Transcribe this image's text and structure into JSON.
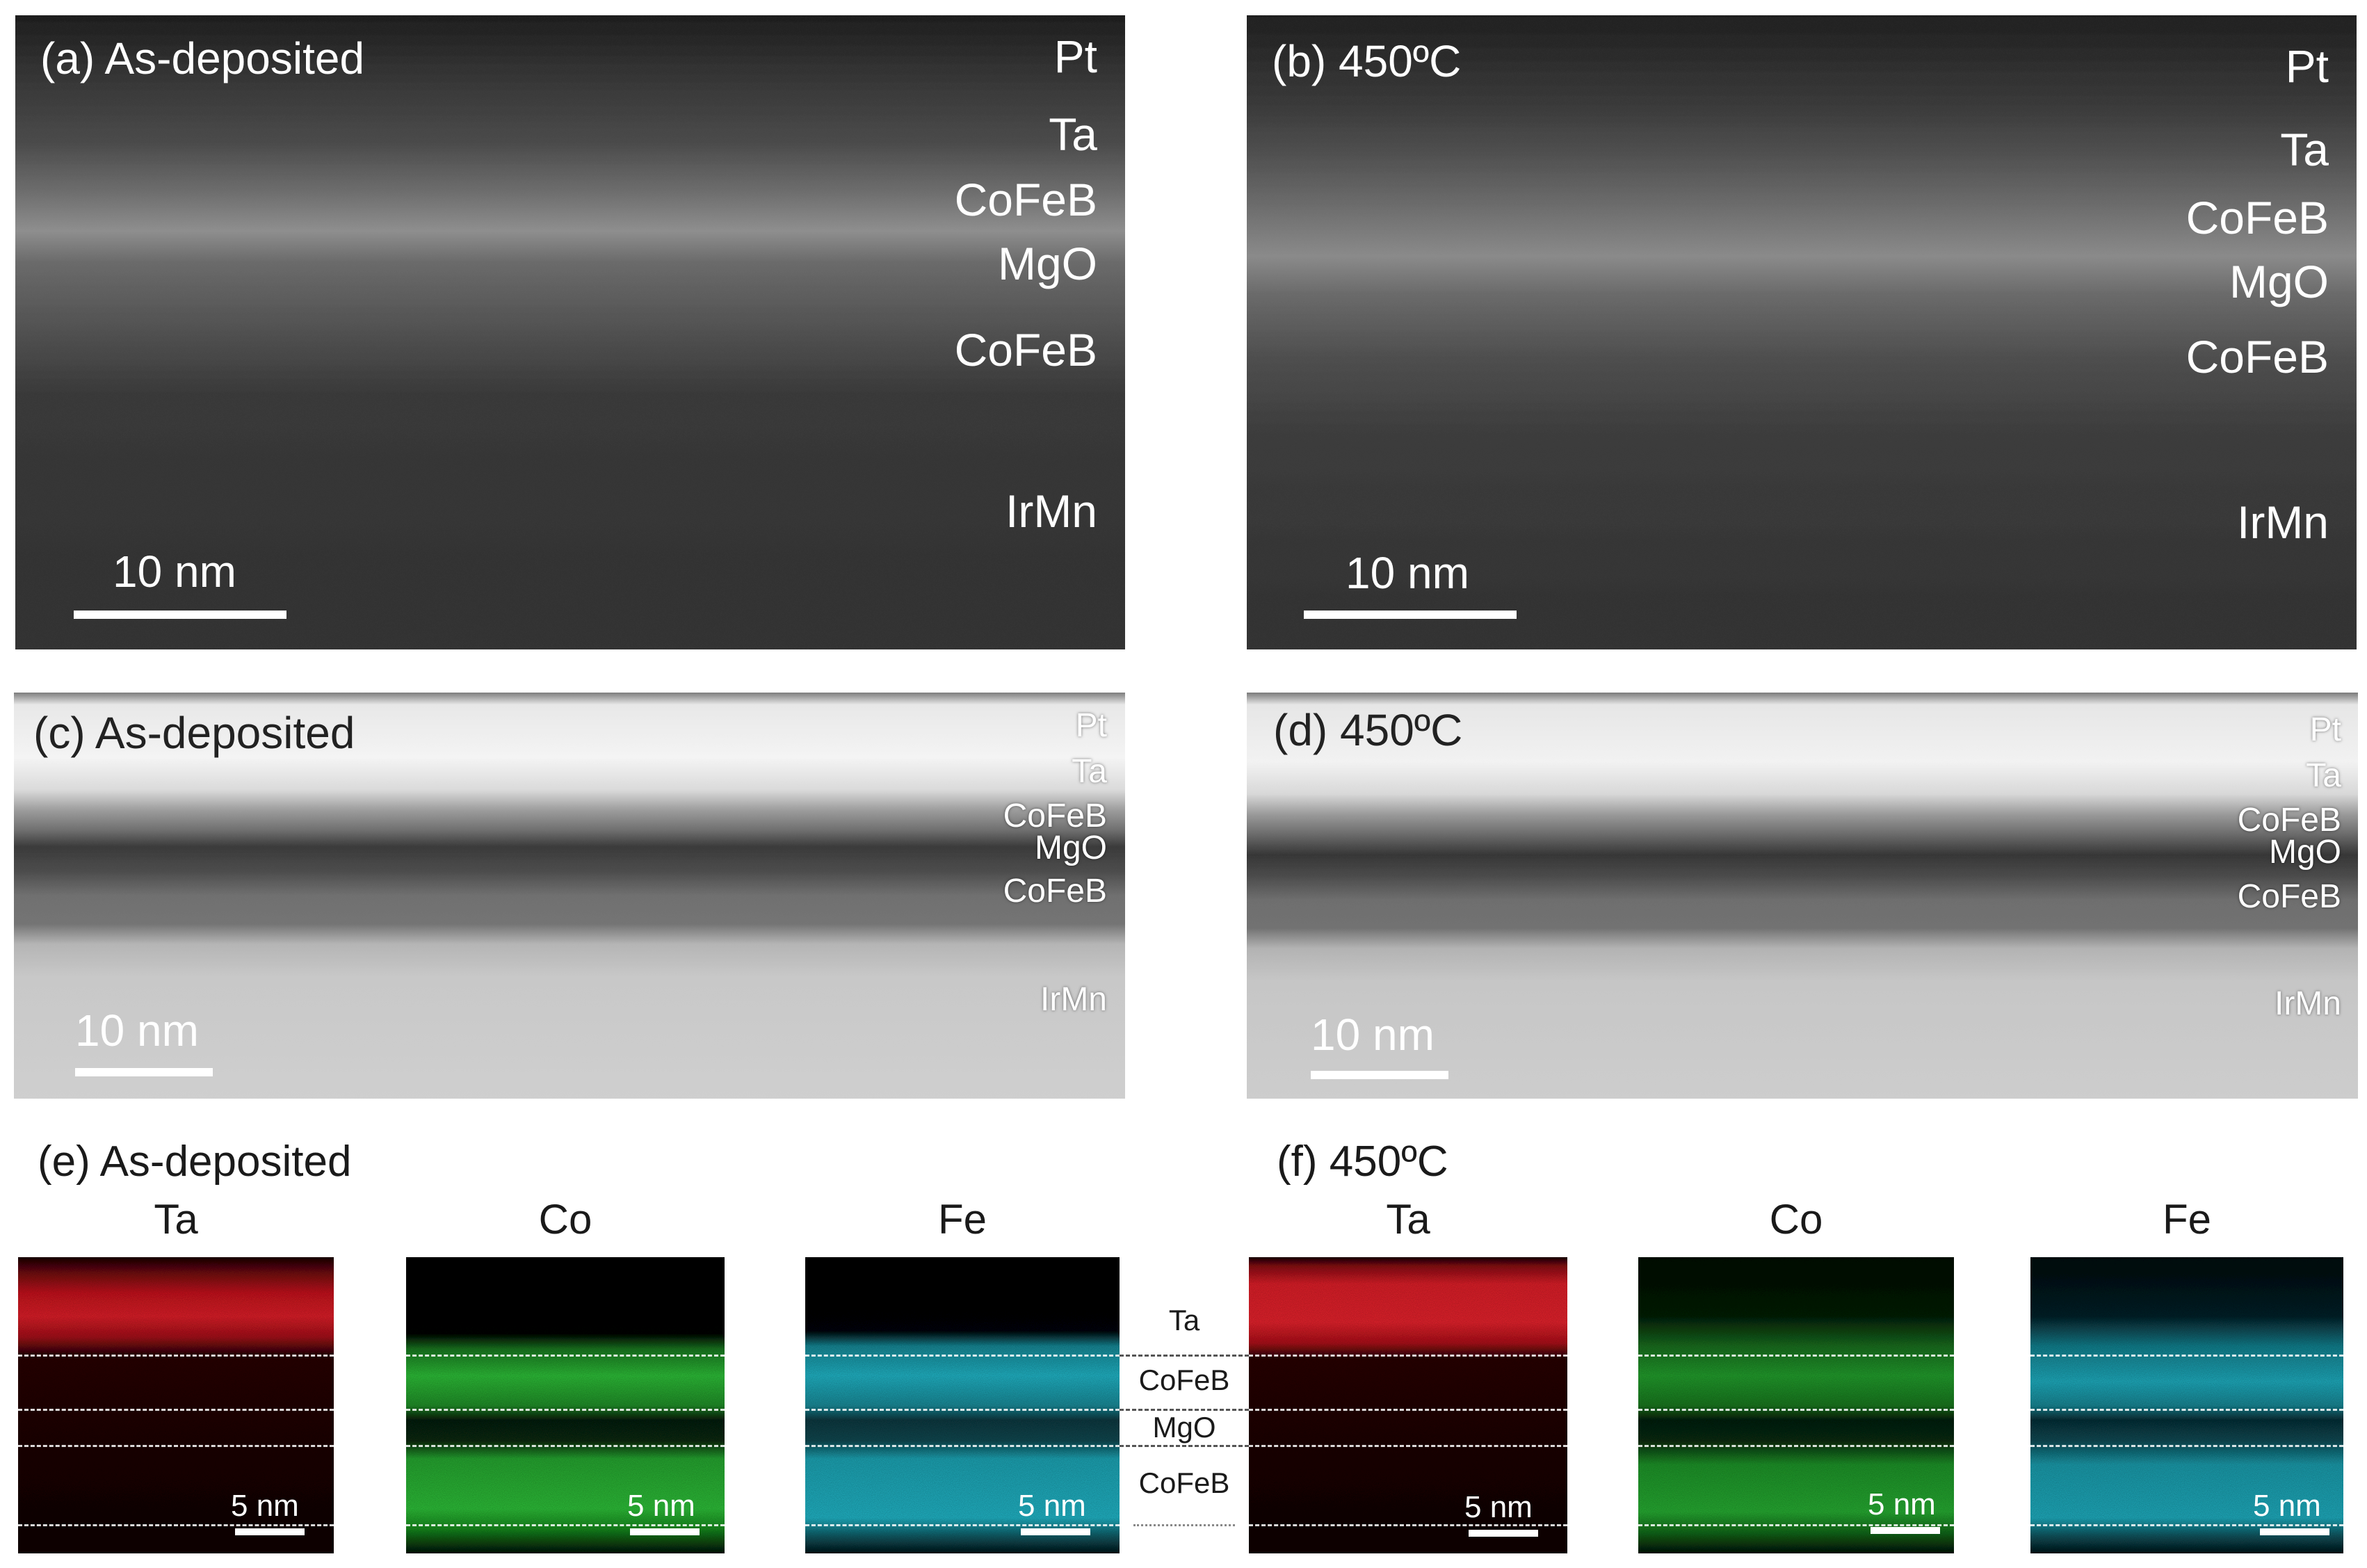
{
  "panels": {
    "a": {
      "label": "(a) As-deposited",
      "scale": "10 nm",
      "layers": [
        "Pt",
        "Ta",
        "CoFeB",
        "MgO",
        "CoFeB",
        "IrMn"
      ]
    },
    "b": {
      "label": "(b) 450ºC",
      "scale": "10 nm",
      "layers": [
        "Pt",
        "Ta",
        "CoFeB",
        "MgO",
        "CoFeB",
        "IrMn"
      ]
    },
    "c": {
      "label": "(c) As-deposited",
      "scale": "10 nm",
      "layers": [
        "Pt",
        "Ta",
        "CoFeB",
        "MgO",
        "CoFeB",
        "IrMn"
      ]
    },
    "d": {
      "label": "(d) 450ºC",
      "scale": "10 nm",
      "layers": [
        "Pt",
        "Ta",
        "CoFeB",
        "MgO",
        "CoFeB",
        "IrMn"
      ]
    }
  },
  "eds": {
    "e": {
      "label": "(e) As-deposited",
      "elements": [
        "Ta",
        "Co",
        "Fe"
      ],
      "scale": "5 nm"
    },
    "f": {
      "label": "(f) 450ºC",
      "elements": [
        "Ta",
        "Co",
        "Fe"
      ],
      "scale": "5 nm"
    },
    "legend_layers": [
      "Ta",
      "CoFeB",
      "MgO",
      "CoFeB"
    ]
  },
  "colors": {
    "ta_map": "#e0202a",
    "co_map": "#2fc13a",
    "fe_map": "#22b6c8"
  }
}
